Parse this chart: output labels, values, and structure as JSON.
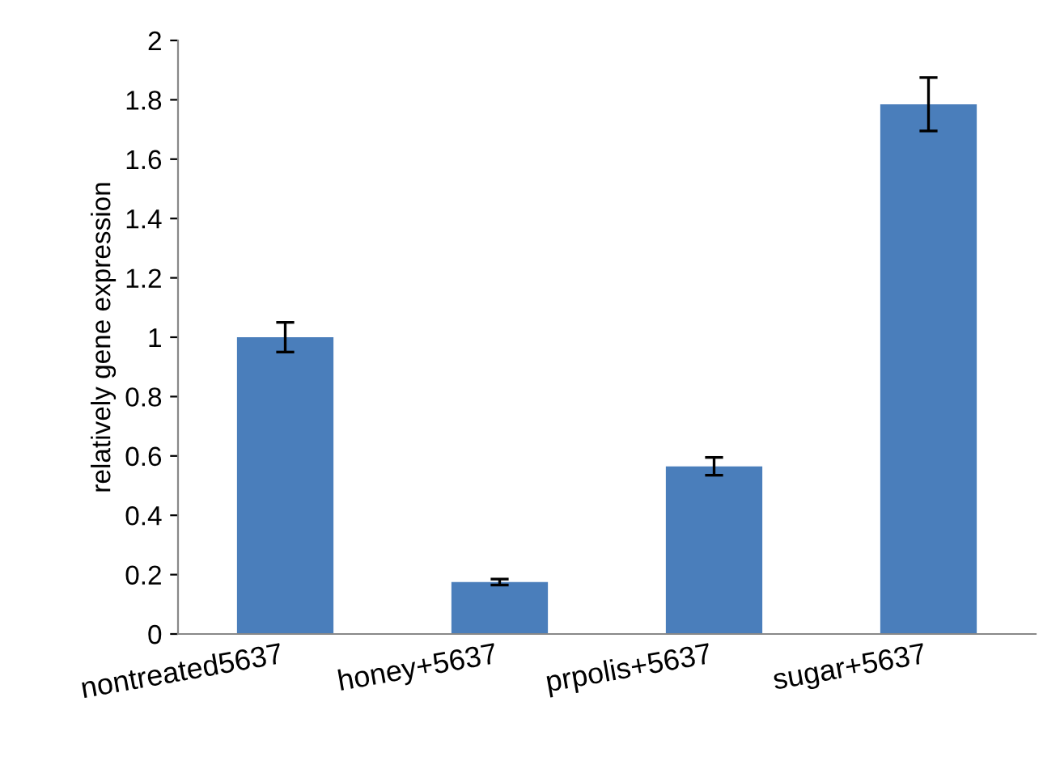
{
  "chart_data": {
    "type": "bar",
    "ylabel": "relatively gene expression",
    "categories": [
      "nontreated5637",
      "honey+5637",
      "prpolis+5637",
      "sugar+5637"
    ],
    "values": [
      1.0,
      0.175,
      0.565,
      1.785
    ],
    "errors": [
      0.05,
      0.01,
      0.03,
      0.09
    ],
    "color": "#4a7ebb",
    "ylim": [
      0,
      2
    ],
    "yticks": [
      0,
      0.2,
      0.4,
      0.6,
      0.8,
      1,
      1.2,
      1.4,
      1.6,
      1.8,
      2
    ],
    "grid": false
  }
}
